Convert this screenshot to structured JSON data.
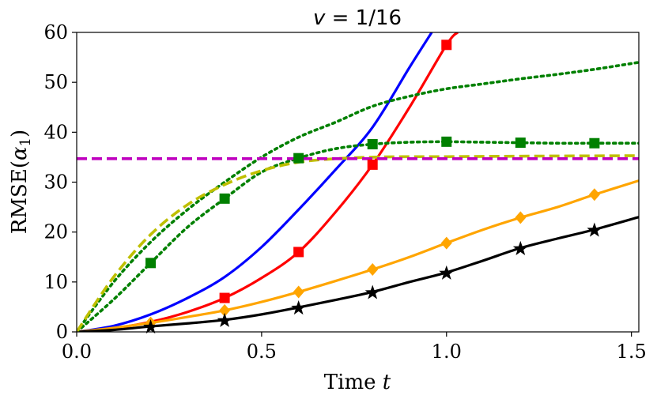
{
  "chart_data": {
    "type": "line",
    "title": "v = 1/16",
    "title_parts": {
      "var": "v",
      "rest": " = 1/16"
    },
    "xlabel": "Time t",
    "xlabel_parts": {
      "text": "Time ",
      "var": "t"
    },
    "ylabel": "RMSE(α1)",
    "ylabel_parts": {
      "text": "RMSE(",
      "var": "α",
      "sub": "1",
      "close": ")"
    },
    "xlim": [
      0,
      1.52
    ],
    "ylim": [
      0,
      60
    ],
    "xticks": [
      0.0,
      0.5,
      1.0,
      1.5
    ],
    "xtick_labels": [
      "0.0",
      "0.5",
      "1.0",
      "1.5"
    ],
    "yticks": [
      0,
      10,
      20,
      30,
      40,
      50,
      60
    ],
    "ytick_labels": [
      "0",
      "10",
      "20",
      "30",
      "40",
      "50",
      "60"
    ],
    "grid": false,
    "legend": "none",
    "series": [
      {
        "name": "blue solid",
        "color": "#0000ff",
        "dash": "solid",
        "marker": "none",
        "x": [
          0,
          0.1,
          0.2,
          0.3,
          0.4,
          0.5,
          0.6,
          0.7,
          0.8,
          0.9,
          0.96
        ],
        "y": [
          0,
          1.2,
          3.5,
          6.8,
          11,
          17,
          24.5,
          32.5,
          41,
          53,
          60
        ]
      },
      {
        "name": "red solid squares",
        "color": "#ff0000",
        "dash": "solid",
        "marker": "square",
        "x": [
          0,
          0.1,
          0.2,
          0.3,
          0.4,
          0.5,
          0.6,
          0.7,
          0.8,
          0.9,
          1.0,
          1.03
        ],
        "y": [
          0,
          0.7,
          2,
          4,
          6.8,
          10.8,
          16,
          24,
          33.5,
          45,
          57.5,
          60
        ],
        "marker_x": [
          0.4,
          0.6,
          0.8,
          1.0
        ],
        "marker_y": [
          6.8,
          16,
          33.5,
          57.5
        ]
      },
      {
        "name": "orange solid diamonds",
        "color": "#ffa500",
        "dash": "solid",
        "marker": "diamond",
        "x": [
          0,
          0.1,
          0.2,
          0.3,
          0.4,
          0.5,
          0.6,
          0.7,
          0.8,
          0.9,
          1.0,
          1.1,
          1.2,
          1.3,
          1.4,
          1.52
        ],
        "y": [
          0,
          0.8,
          1.8,
          3,
          4.3,
          6,
          8,
          10.2,
          12.5,
          15,
          17.8,
          20.5,
          22.9,
          25,
          27.5,
          30.3
        ],
        "marker_x": [
          0.2,
          0.4,
          0.6,
          0.8,
          1.0,
          1.2,
          1.4
        ],
        "marker_y": [
          1.8,
          4.3,
          8,
          12.5,
          17.8,
          22.9,
          27.5
        ]
      },
      {
        "name": "black solid stars",
        "color": "#000000",
        "dash": "solid",
        "marker": "star",
        "x": [
          0,
          0.1,
          0.2,
          0.3,
          0.4,
          0.5,
          0.6,
          0.7,
          0.8,
          0.9,
          1.0,
          1.1,
          1.2,
          1.3,
          1.4,
          1.52
        ],
        "y": [
          0,
          0.4,
          1.1,
          1.7,
          2.4,
          3.5,
          4.9,
          6.4,
          8,
          10,
          11.9,
          14.3,
          16.8,
          18.7,
          20.5,
          23
        ],
        "marker_x": [
          0.2,
          0.4,
          0.6,
          0.8,
          1.0,
          1.2,
          1.4
        ],
        "marker_y": [
          1.1,
          2.4,
          4.9,
          8,
          11.9,
          16.8,
          20.5
        ]
      },
      {
        "name": "green dotted",
        "color": "#008000",
        "dash": "dotted",
        "marker": "none",
        "x": [
          0,
          0.1,
          0.2,
          0.3,
          0.4,
          0.5,
          0.6,
          0.7,
          0.8,
          0.9,
          1.0,
          1.1,
          1.2,
          1.3,
          1.4,
          1.52
        ],
        "y": [
          0,
          10,
          18,
          24.5,
          30,
          35,
          39,
          42,
          45.2,
          47.2,
          48.7,
          49.7,
          50.7,
          51.6,
          52.6,
          54
        ]
      },
      {
        "name": "green dotted squares",
        "color": "#008000",
        "dash": "dotted",
        "marker": "square",
        "x": [
          0,
          0.1,
          0.2,
          0.3,
          0.4,
          0.5,
          0.6,
          0.7,
          0.8,
          0.9,
          1.0,
          1.1,
          1.2,
          1.3,
          1.4,
          1.52
        ],
        "y": [
          0,
          6.5,
          13.8,
          21,
          26.7,
          32,
          34.8,
          36.7,
          37.6,
          38,
          38.1,
          38,
          37.9,
          37.8,
          37.8,
          37.8
        ],
        "marker_x": [
          0.2,
          0.4,
          0.6,
          0.8,
          1.0,
          1.2,
          1.4
        ],
        "marker_y": [
          13.8,
          26.7,
          34.8,
          37.6,
          38.1,
          37.9,
          37.8
        ]
      },
      {
        "name": "olive dashed",
        "color": "#bfbf00",
        "dash": "dashed",
        "marker": "none",
        "x": [
          0,
          0.1,
          0.2,
          0.3,
          0.4,
          0.5,
          0.6,
          0.7,
          0.8,
          0.9,
          1.0,
          1.2,
          1.52
        ],
        "y": [
          0,
          11,
          19.5,
          25.5,
          29.5,
          32.3,
          34,
          34.7,
          35,
          35.1,
          35.1,
          35.2,
          35.3
        ]
      },
      {
        "name": "magenta dashed",
        "color": "#bf00bf",
        "dash": "dashed",
        "marker": "none",
        "x": [
          0,
          1.52
        ],
        "y": [
          34.7,
          34.7
        ]
      }
    ]
  }
}
